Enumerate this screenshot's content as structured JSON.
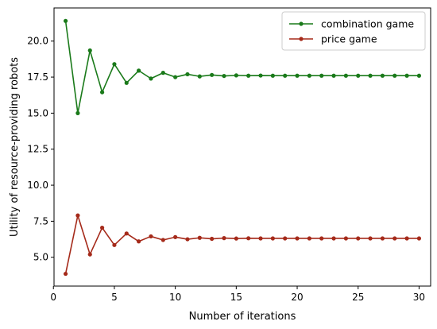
{
  "chart_data": {
    "type": "line",
    "title": "",
    "xlabel": "Number of iterations",
    "ylabel": "Utility of resource-providing robots",
    "xlim": [
      0.05,
      30.95
    ],
    "ylim": [
      3.0,
      22.3
    ],
    "xticks": [
      0,
      5,
      10,
      15,
      20,
      25,
      30
    ],
    "yticks": [
      5.0,
      7.5,
      10.0,
      12.5,
      15.0,
      17.5,
      20.0
    ],
    "xtick_labels": [
      "0",
      "5",
      "10",
      "15",
      "20",
      "25",
      "30"
    ],
    "ytick_labels": [
      "5.0",
      "7.5",
      "10.0",
      "12.5",
      "15.0",
      "17.5",
      "20.0"
    ],
    "grid": false,
    "legend_position": "top-right",
    "x": [
      1,
      2,
      3,
      4,
      5,
      6,
      7,
      8,
      9,
      10,
      11,
      12,
      13,
      14,
      15,
      16,
      17,
      18,
      19,
      20,
      21,
      22,
      23,
      24,
      25,
      26,
      27,
      28,
      29,
      30
    ],
    "series": [
      {
        "name": "combination game",
        "color": "#1a7a1a",
        "marker": "circle",
        "values": [
          21.4,
          15.0,
          19.35,
          16.45,
          18.4,
          17.1,
          17.95,
          17.4,
          17.8,
          17.5,
          17.7,
          17.55,
          17.65,
          17.58,
          17.62,
          17.6,
          17.61,
          17.6,
          17.6,
          17.6,
          17.6,
          17.6,
          17.6,
          17.6,
          17.6,
          17.6,
          17.6,
          17.6,
          17.6,
          17.6
        ]
      },
      {
        "name": "price game",
        "color": "#a52a1a",
        "marker": "circle",
        "values": [
          3.85,
          7.9,
          5.2,
          7.05,
          5.85,
          6.65,
          6.1,
          6.45,
          6.2,
          6.4,
          6.25,
          6.35,
          6.28,
          6.33,
          6.3,
          6.32,
          6.31,
          6.31,
          6.31,
          6.31,
          6.31,
          6.31,
          6.31,
          6.31,
          6.31,
          6.31,
          6.31,
          6.31,
          6.31,
          6.31
        ]
      }
    ]
  }
}
